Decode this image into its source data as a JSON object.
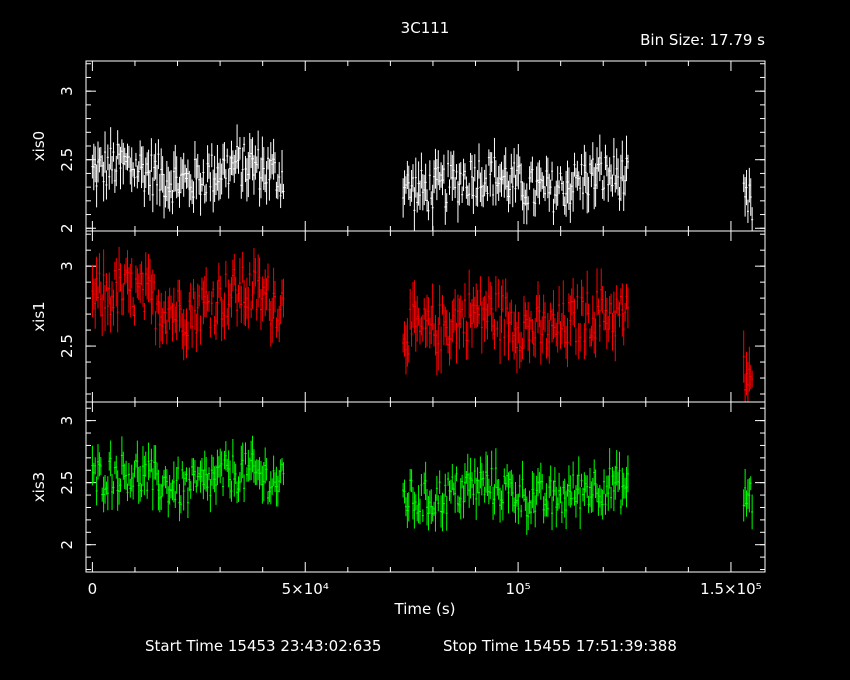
{
  "header": {
    "title": "3C111",
    "bin_size": "Bin Size: 17.79 s"
  },
  "footer": {
    "start_time": "Start Time 15453 23:43:02:635",
    "stop_time": "Stop Time 15455 17:51:39:388"
  },
  "chart_data": {
    "type": "scatter",
    "title": "3C111",
    "xlabel": "Time (s)",
    "xlim": [
      -1500,
      158000
    ],
    "x_ticks": [
      {
        "value": 0,
        "label": "0"
      },
      {
        "value": 50000,
        "label": "5×10⁴"
      },
      {
        "value": 100000,
        "label": "10⁵"
      },
      {
        "value": 150000,
        "label": "1.5×10⁵"
      }
    ],
    "gaps": [
      [
        45000,
        73000
      ],
      [
        126000,
        153000
      ]
    ],
    "segments": [
      [
        0,
        45000
      ],
      [
        73000,
        126000
      ],
      [
        153000,
        155000
      ]
    ],
    "panels": [
      {
        "name": "xis0",
        "ylabel": "xis0",
        "color": "#ffffff",
        "ylim": [
          1.98,
          3.22
        ],
        "yticks": [
          2,
          2.5,
          3
        ],
        "ytick_labels": [
          "2",
          "2.5",
          "3"
        ],
        "segment_levels": [
          2.4,
          2.33,
          2.15
        ],
        "points": [
          {
            "x": 3000,
            "y": 2.52
          },
          {
            "x": 9000,
            "y": 2.45
          },
          {
            "x": 15000,
            "y": 2.35
          },
          {
            "x": 21000,
            "y": 2.4
          },
          {
            "x": 27000,
            "y": 2.48
          },
          {
            "x": 33000,
            "y": 2.42
          },
          {
            "x": 39000,
            "y": 2.38
          },
          {
            "x": 44000,
            "y": 2.3
          },
          {
            "x": 75000,
            "y": 2.45
          },
          {
            "x": 81000,
            "y": 2.38
          },
          {
            "x": 87000,
            "y": 2.4
          },
          {
            "x": 93000,
            "y": 2.32
          },
          {
            "x": 99000,
            "y": 2.3
          },
          {
            "x": 105000,
            "y": 2.28
          },
          {
            "x": 111000,
            "y": 2.25
          },
          {
            "x": 117000,
            "y": 2.22
          },
          {
            "x": 123000,
            "y": 2.24
          },
          {
            "x": 154000,
            "y": 2.1
          }
        ]
      },
      {
        "name": "xis1",
        "ylabel": "xis1",
        "color": "#ff0000",
        "ylim": [
          2.15,
          3.22
        ],
        "yticks": [
          2.5,
          3
        ],
        "ytick_labels": [
          "2.5",
          "3"
        ],
        "segment_levels": [
          2.78,
          2.65,
          2.3
        ],
        "points": [
          {
            "x": 3000,
            "y": 2.78
          },
          {
            "x": 9000,
            "y": 2.82
          },
          {
            "x": 15000,
            "y": 2.75
          },
          {
            "x": 21000,
            "y": 2.8
          },
          {
            "x": 27000,
            "y": 2.85
          },
          {
            "x": 33000,
            "y": 2.78
          },
          {
            "x": 39000,
            "y": 2.72
          },
          {
            "x": 44000,
            "y": 2.76
          },
          {
            "x": 75000,
            "y": 2.7
          },
          {
            "x": 81000,
            "y": 2.72
          },
          {
            "x": 87000,
            "y": 2.62
          },
          {
            "x": 93000,
            "y": 2.65
          },
          {
            "x": 99000,
            "y": 2.68
          },
          {
            "x": 105000,
            "y": 2.62
          },
          {
            "x": 111000,
            "y": 2.7
          },
          {
            "x": 117000,
            "y": 2.6
          },
          {
            "x": 123000,
            "y": 2.58
          },
          {
            "x": 154000,
            "y": 2.3
          }
        ]
      },
      {
        "name": "xis3",
        "ylabel": "xis3",
        "color": "#00ff00",
        "ylim": [
          1.78,
          3.15
        ],
        "yticks": [
          2,
          2.5,
          3
        ],
        "ytick_labels": [
          "2",
          "2.5",
          "3"
        ],
        "segment_levels": [
          2.52,
          2.42,
          2.38
        ],
        "points": [
          {
            "x": 3000,
            "y": 2.55
          },
          {
            "x": 9000,
            "y": 2.58
          },
          {
            "x": 15000,
            "y": 2.52
          },
          {
            "x": 21000,
            "y": 2.48
          },
          {
            "x": 27000,
            "y": 2.5
          },
          {
            "x": 33000,
            "y": 2.55
          },
          {
            "x": 39000,
            "y": 2.6
          },
          {
            "x": 44000,
            "y": 2.4
          },
          {
            "x": 75000,
            "y": 2.45
          },
          {
            "x": 81000,
            "y": 2.5
          },
          {
            "x": 87000,
            "y": 2.48
          },
          {
            "x": 93000,
            "y": 2.4
          },
          {
            "x": 99000,
            "y": 2.42
          },
          {
            "x": 105000,
            "y": 2.38
          },
          {
            "x": 111000,
            "y": 2.35
          },
          {
            "x": 117000,
            "y": 2.4
          },
          {
            "x": 123000,
            "y": 2.38
          },
          {
            "x": 154000,
            "y": 2.38
          }
        ]
      }
    ]
  }
}
